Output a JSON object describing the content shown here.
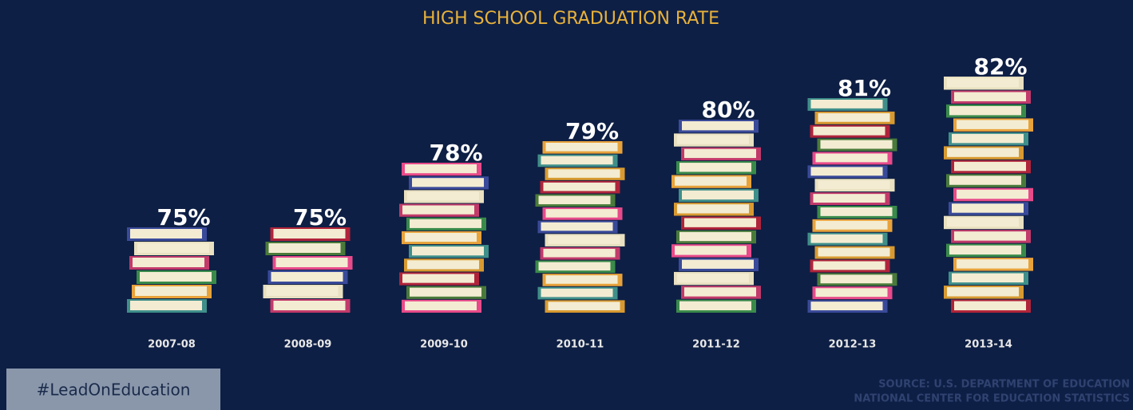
{
  "chart_data": {
    "type": "pictograph",
    "title": "HIGH SCHOOL GRADUATION RATE",
    "categories": [
      "2007-08",
      "2008-09",
      "2009-10",
      "2010-11",
      "2011-12",
      "2012-13",
      "2013-14"
    ],
    "values": [
      75,
      75,
      78,
      79,
      80,
      81,
      82
    ],
    "value_labels": [
      "75%",
      "75%",
      "78%",
      "79%",
      "80%",
      "81%",
      "82%"
    ],
    "ylim": [
      71,
      82
    ],
    "hashtag": "#LeadOnEducation",
    "source": [
      "SOURCE: U.S. DEPARTMENT OF EDUCATION",
      "NATIONAL CENTER FOR EDUCATION STATISTICS"
    ]
  }
}
